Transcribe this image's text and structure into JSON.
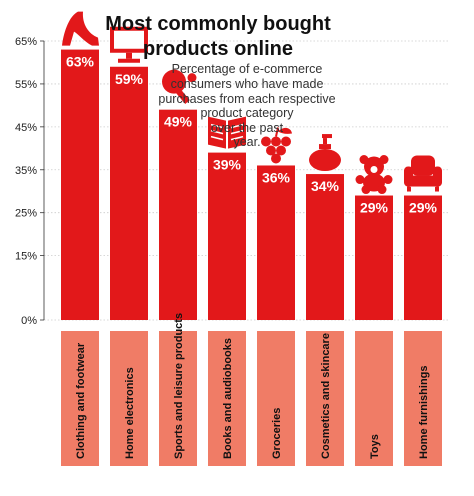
{
  "colors": {
    "bar": "#e2181a",
    "label_box": "#f07c66",
    "grid": "#cccccc",
    "axis": "#333333",
    "icon_light": "#ffffff"
  },
  "chart_data": {
    "type": "bar",
    "title": "Most commonly bought products online",
    "title_lines": [
      "Most commonly bought",
      "products online"
    ],
    "subtitle": "Percentage of e-commerce consumers who have made purchases from each respective product category over the past year.",
    "subtitle_lines": [
      "Percentage of e-commerce",
      "consumers who have made",
      "purchases from each respective",
      "product category",
      "over the past",
      "year."
    ],
    "categories": [
      "Clothing and footwear",
      "Home electronics",
      "Sports and leisure products",
      "Books and audiobooks",
      "Groceries",
      "Cosmetics and skincare",
      "Toys",
      "Home furnishings"
    ],
    "values": [
      63,
      59,
      49,
      39,
      36,
      34,
      29,
      29
    ],
    "value_labels": [
      "63%",
      "59%",
      "49%",
      "39%",
      "36%",
      "34%",
      "29%",
      "29%"
    ],
    "icons": [
      "high-heel-icon",
      "monitor-icon",
      "ping-pong-icon",
      "book-icon",
      "grapes-icon",
      "lotion-bottle-icon",
      "teddy-bear-icon",
      "armchair-icon"
    ],
    "yticks": [
      0,
      15,
      25,
      35,
      45,
      55,
      65
    ],
    "ytick_labels": [
      "0%",
      "15%",
      "25%",
      "35%",
      "45%",
      "55%",
      "65%"
    ],
    "ylim": [
      0,
      65
    ],
    "xlabel": "",
    "ylabel": "",
    "grid": true,
    "legend": "none"
  }
}
